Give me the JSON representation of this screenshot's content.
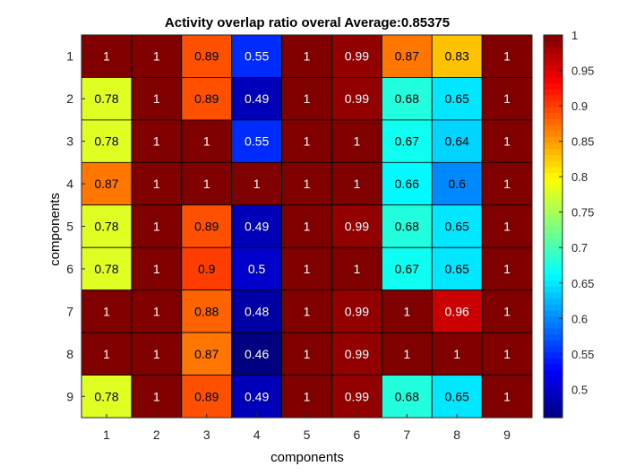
{
  "chart_data": {
    "type": "heatmap",
    "title": "Activity overlap ratio  overal Average:0.85375",
    "xlabel": "components",
    "ylabel": "components",
    "x_categories": [
      "1",
      "2",
      "3",
      "4",
      "5",
      "6",
      "7",
      "8",
      "9"
    ],
    "y_categories": [
      "1",
      "2",
      "3",
      "4",
      "5",
      "6",
      "7",
      "8",
      "9"
    ],
    "values": [
      [
        1,
        1,
        0.89,
        0.55,
        1,
        0.99,
        0.87,
        0.83,
        1
      ],
      [
        0.78,
        1,
        0.89,
        0.49,
        1,
        0.99,
        0.68,
        0.65,
        1
      ],
      [
        0.78,
        1,
        1,
        0.55,
        1,
        1,
        0.67,
        0.64,
        1
      ],
      [
        0.87,
        1,
        1,
        1,
        1,
        1,
        0.66,
        0.6,
        1
      ],
      [
        0.78,
        1,
        0.89,
        0.49,
        1,
        0.99,
        0.68,
        0.65,
        1
      ],
      [
        0.78,
        1,
        0.9,
        0.5,
        1,
        1,
        0.67,
        0.65,
        1
      ],
      [
        1,
        1,
        0.88,
        0.48,
        1,
        0.99,
        1,
        0.96,
        1
      ],
      [
        1,
        1,
        0.87,
        0.46,
        1,
        0.99,
        1,
        1,
        1
      ],
      [
        0.78,
        1,
        0.89,
        0.49,
        1,
        0.99,
        0.68,
        0.65,
        1
      ]
    ],
    "colormap": "jet",
    "color_range": [
      0.46,
      1
    ],
    "colorbar_ticks": [
      "0.5",
      "0.55",
      "0.6",
      "0.65",
      "0.7",
      "0.75",
      "0.8",
      "0.85",
      "0.9",
      "0.95",
      "1"
    ],
    "grid": true,
    "cell_border_color": "#000000"
  }
}
